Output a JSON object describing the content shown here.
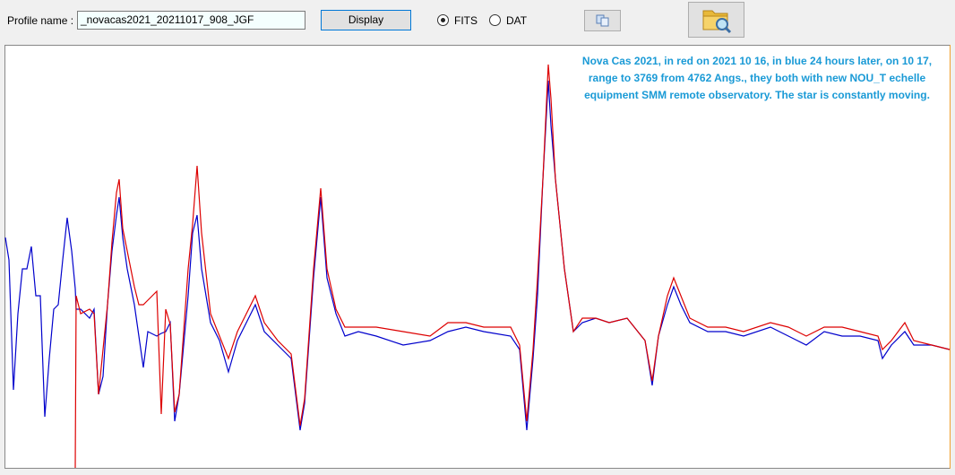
{
  "ui": {
    "profile_label": "Profile name :",
    "profile_value": "_novacas2021_20211017_908_JGF",
    "display_button": "Display",
    "radio_fits": "FITS",
    "radio_dat": "DAT"
  },
  "chart_data": {
    "type": "line",
    "annotation": [
      "Nova Cas 2021, in red on 2021 10 16, in blue 24 hours later, on 10 17,",
      "range to 3769 from 4762 Angs., they both with new NOU_T echelle",
      "equipment SMM remote observatory. The star is constantly moving."
    ],
    "x": [
      6,
      10,
      15,
      20,
      25,
      30,
      35,
      40,
      45,
      50,
      55,
      60,
      65,
      70,
      75,
      80,
      84,
      85,
      90,
      100,
      105,
      110,
      115,
      120,
      125,
      130,
      133,
      137,
      142,
      150,
      155,
      160,
      165,
      175,
      180,
      185,
      190,
      195,
      200,
      210,
      215,
      220,
      225,
      235,
      245,
      255,
      265,
      275,
      285,
      295,
      310,
      325,
      335,
      340,
      350,
      358,
      365,
      375,
      385,
      400,
      420,
      450,
      480,
      500,
      520,
      540,
      570,
      580,
      588,
      595,
      600,
      606,
      612,
      615,
      620,
      630,
      640,
      650,
      665,
      680,
      700,
      720,
      728,
      735,
      745,
      752,
      760,
      770,
      790,
      810,
      830,
      860,
      880,
      900,
      920,
      940,
      960,
      980,
      985,
      995,
      1010,
      1020,
      1040,
      1060
    ],
    "xlim": [
      6,
      1060
    ],
    "ylim": [
      0,
      472
    ],
    "series": [
      {
        "color": "#0000cc",
        "values": [
          257,
          232,
          87,
          172,
          222,
          222,
          247,
          192,
          192,
          57,
          122,
          177,
          182,
          232,
          279,
          242,
          200,
          177,
          177,
          167,
          177,
          82,
          102,
          182,
          242,
          282,
          302,
          257,
          222,
          182,
          147,
          112,
          152,
          147,
          150,
          152,
          162,
          52,
          82,
          192,
          262,
          282,
          222,
          162,
          142,
          107,
          142,
          162,
          182,
          152,
          137,
          122,
          42,
          72,
          212,
          302,
          212,
          172,
          147,
          152,
          147,
          137,
          142,
          152,
          157,
          152,
          147,
          132,
          42,
          122,
          192,
          322,
          432,
          382,
          322,
          222,
          152,
          162,
          167,
          162,
          167,
          142,
          92,
          147,
          182,
          202,
          182,
          162,
          152,
          152,
          147,
          157,
          147,
          137,
          152,
          147,
          147,
          142,
          122,
          137,
          152,
          137,
          137,
          132
        ]
      },
      {
        "color": "#dd0000",
        "values": [
          null,
          null,
          null,
          null,
          null,
          null,
          null,
          null,
          null,
          null,
          null,
          null,
          null,
          null,
          null,
          null,
          0,
          192,
          172,
          177,
          172,
          82,
          132,
          182,
          252,
          307,
          322,
          267,
          242,
          202,
          182,
          182,
          187,
          197,
          60,
          177,
          160,
          62,
          82,
          222,
          272,
          337,
          262,
          172,
          147,
          122,
          152,
          172,
          192,
          162,
          142,
          127,
          47,
          77,
          222,
          312,
          222,
          177,
          157,
          157,
          157,
          152,
          147,
          162,
          162,
          157,
          157,
          137,
          52,
          132,
          212,
          322,
          450,
          412,
          322,
          222,
          152,
          167,
          167,
          162,
          167,
          142,
          97,
          147,
          192,
          212,
          192,
          167,
          157,
          157,
          152,
          162,
          157,
          147,
          157,
          157,
          152,
          147,
          132,
          142,
          162,
          142,
          137,
          132
        ]
      }
    ]
  }
}
